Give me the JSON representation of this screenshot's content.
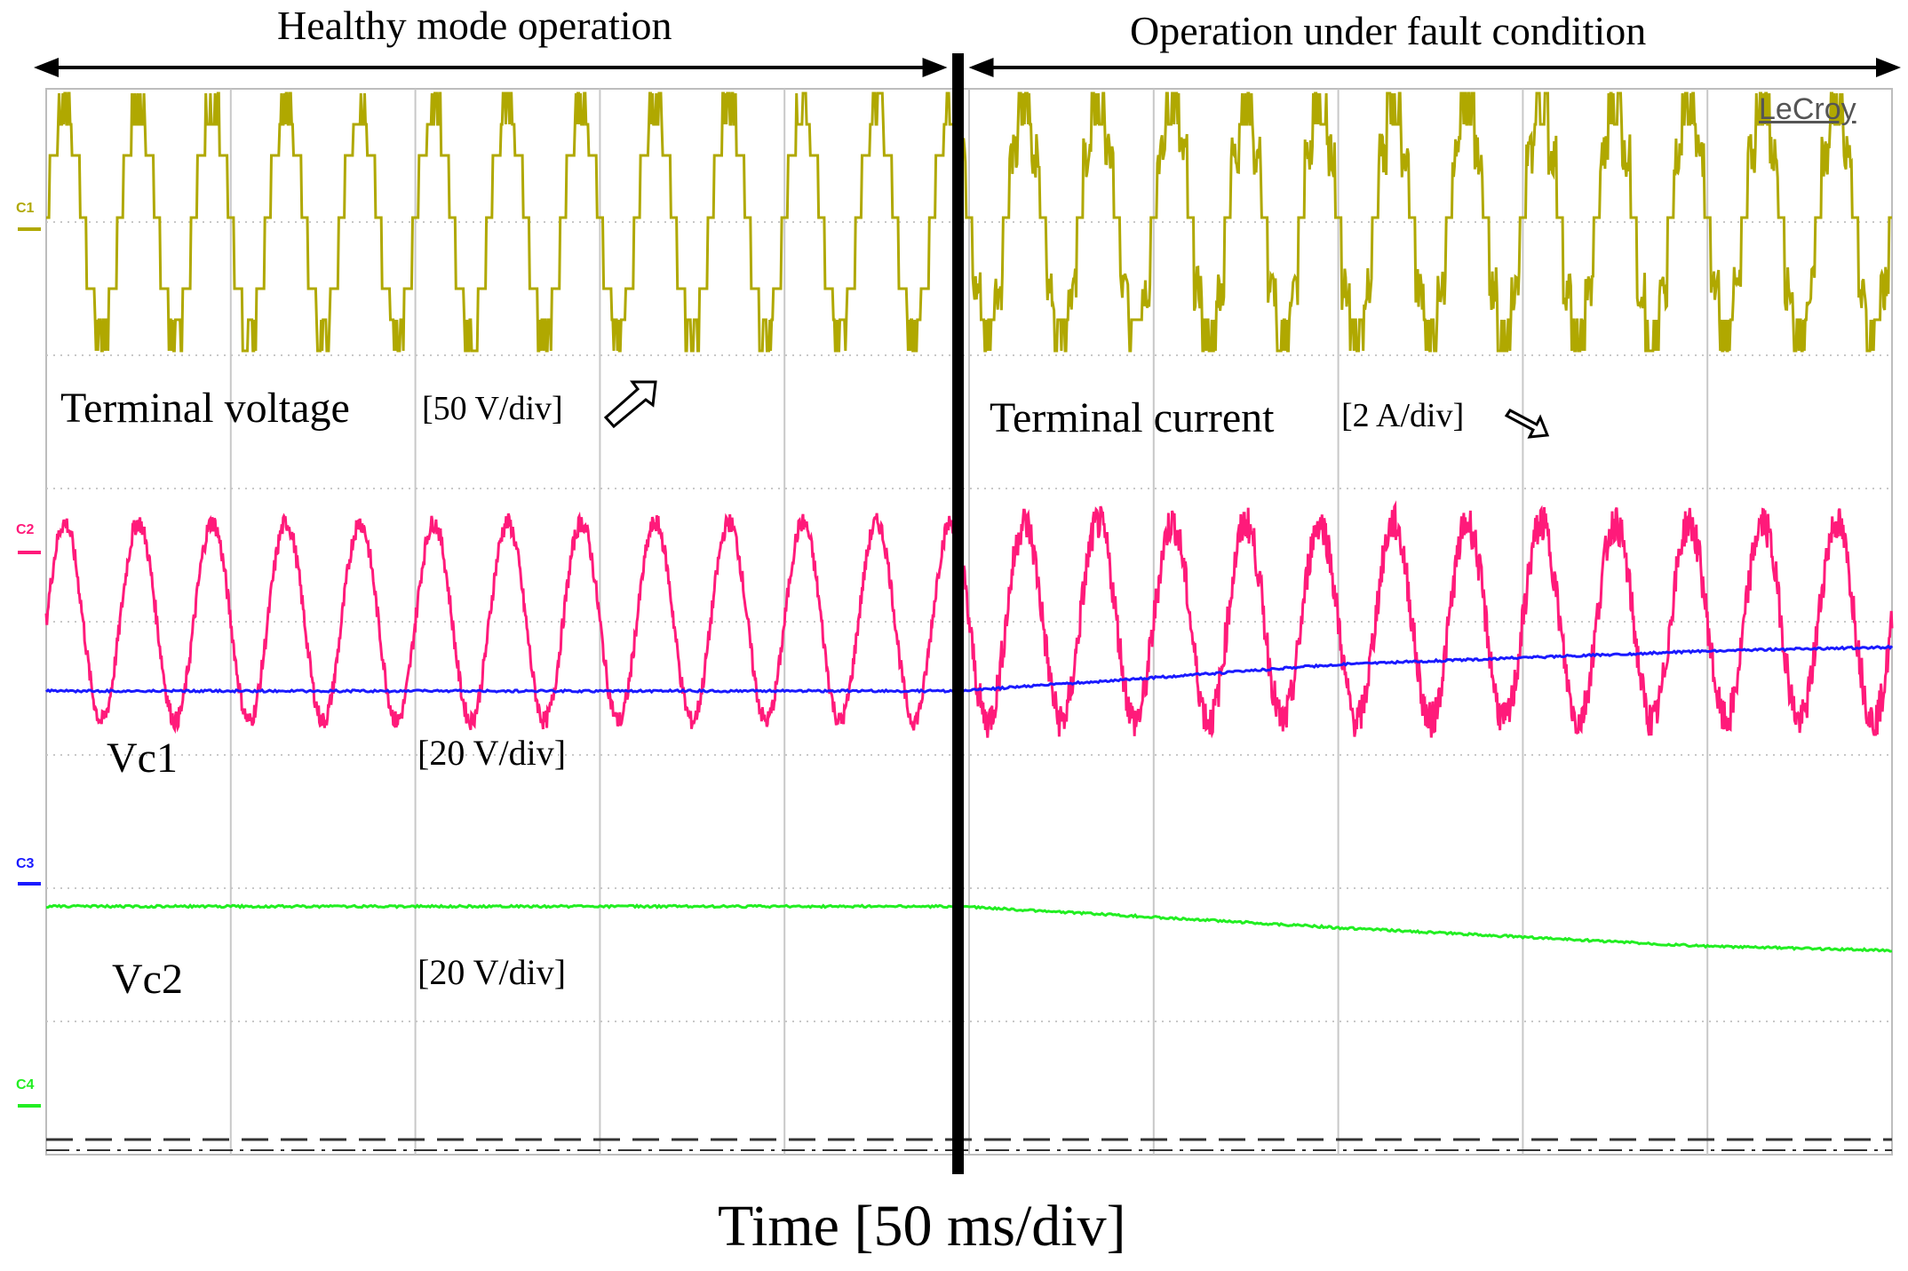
{
  "brand": "LeCroy",
  "annotations": {
    "healthy": "Healthy mode operation",
    "fault": "Operation under fault condition",
    "terminal_voltage": "Terminal voltage",
    "voltage_scale": "[50 V/div]",
    "terminal_current": "Terminal current",
    "current_scale": "[2 A/div]",
    "vc1": "Vc1",
    "vc1_scale": "[20 V/div]",
    "vc2": "Vc2",
    "vc2_scale": "[20 V/div]",
    "time_axis": "Time [50 ms/div]"
  },
  "chart_data": {
    "type": "line",
    "title": "",
    "xlabel": "Time [50 ms/div]",
    "x_unit": "ms",
    "x_per_div": 50,
    "x_divisions": 10,
    "xlim": [
      0,
      500
    ],
    "fault_time": 247,
    "grid": true,
    "channels": [
      {
        "name": "C1",
        "label": "Terminal voltage",
        "unit": "V",
        "per_div": 50,
        "color": "#b0a800",
        "waveform": "multilevel-staircase",
        "levels_div": [
          -1,
          0,
          1
        ],
        "frequency_hz": 50,
        "healthy_amplitude_div": 1.45,
        "fault_amplitude_div": 1.45
      },
      {
        "name": "C2",
        "label": "Terminal current",
        "unit": "A",
        "per_div": 2,
        "color": "#ff1a7a",
        "waveform": "sinusoid",
        "frequency_hz": 50,
        "offset_div": 0.55,
        "amplitude_div": 0.93
      },
      {
        "name": "C3",
        "label": "Vc1",
        "unit": "V",
        "per_div": 20,
        "color": "#1a1aff",
        "waveform": "dc",
        "x": [
          0,
          247,
          300,
          350,
          400,
          450,
          500
        ],
        "y_div": [
          1.88,
          1.88,
          1.98,
          2.08,
          2.13,
          2.18,
          2.21
        ]
      },
      {
        "name": "C4",
        "label": "Vc2",
        "unit": "V",
        "per_div": 20,
        "color": "#22ee22",
        "waveform": "dc",
        "x": [
          0,
          247,
          300,
          350,
          400,
          450,
          500
        ],
        "y_div": [
          1.93,
          1.93,
          1.85,
          1.77,
          1.7,
          1.63,
          1.6
        ]
      }
    ],
    "channel_labels": [
      "C1",
      "C2",
      "C3",
      "C4"
    ]
  }
}
